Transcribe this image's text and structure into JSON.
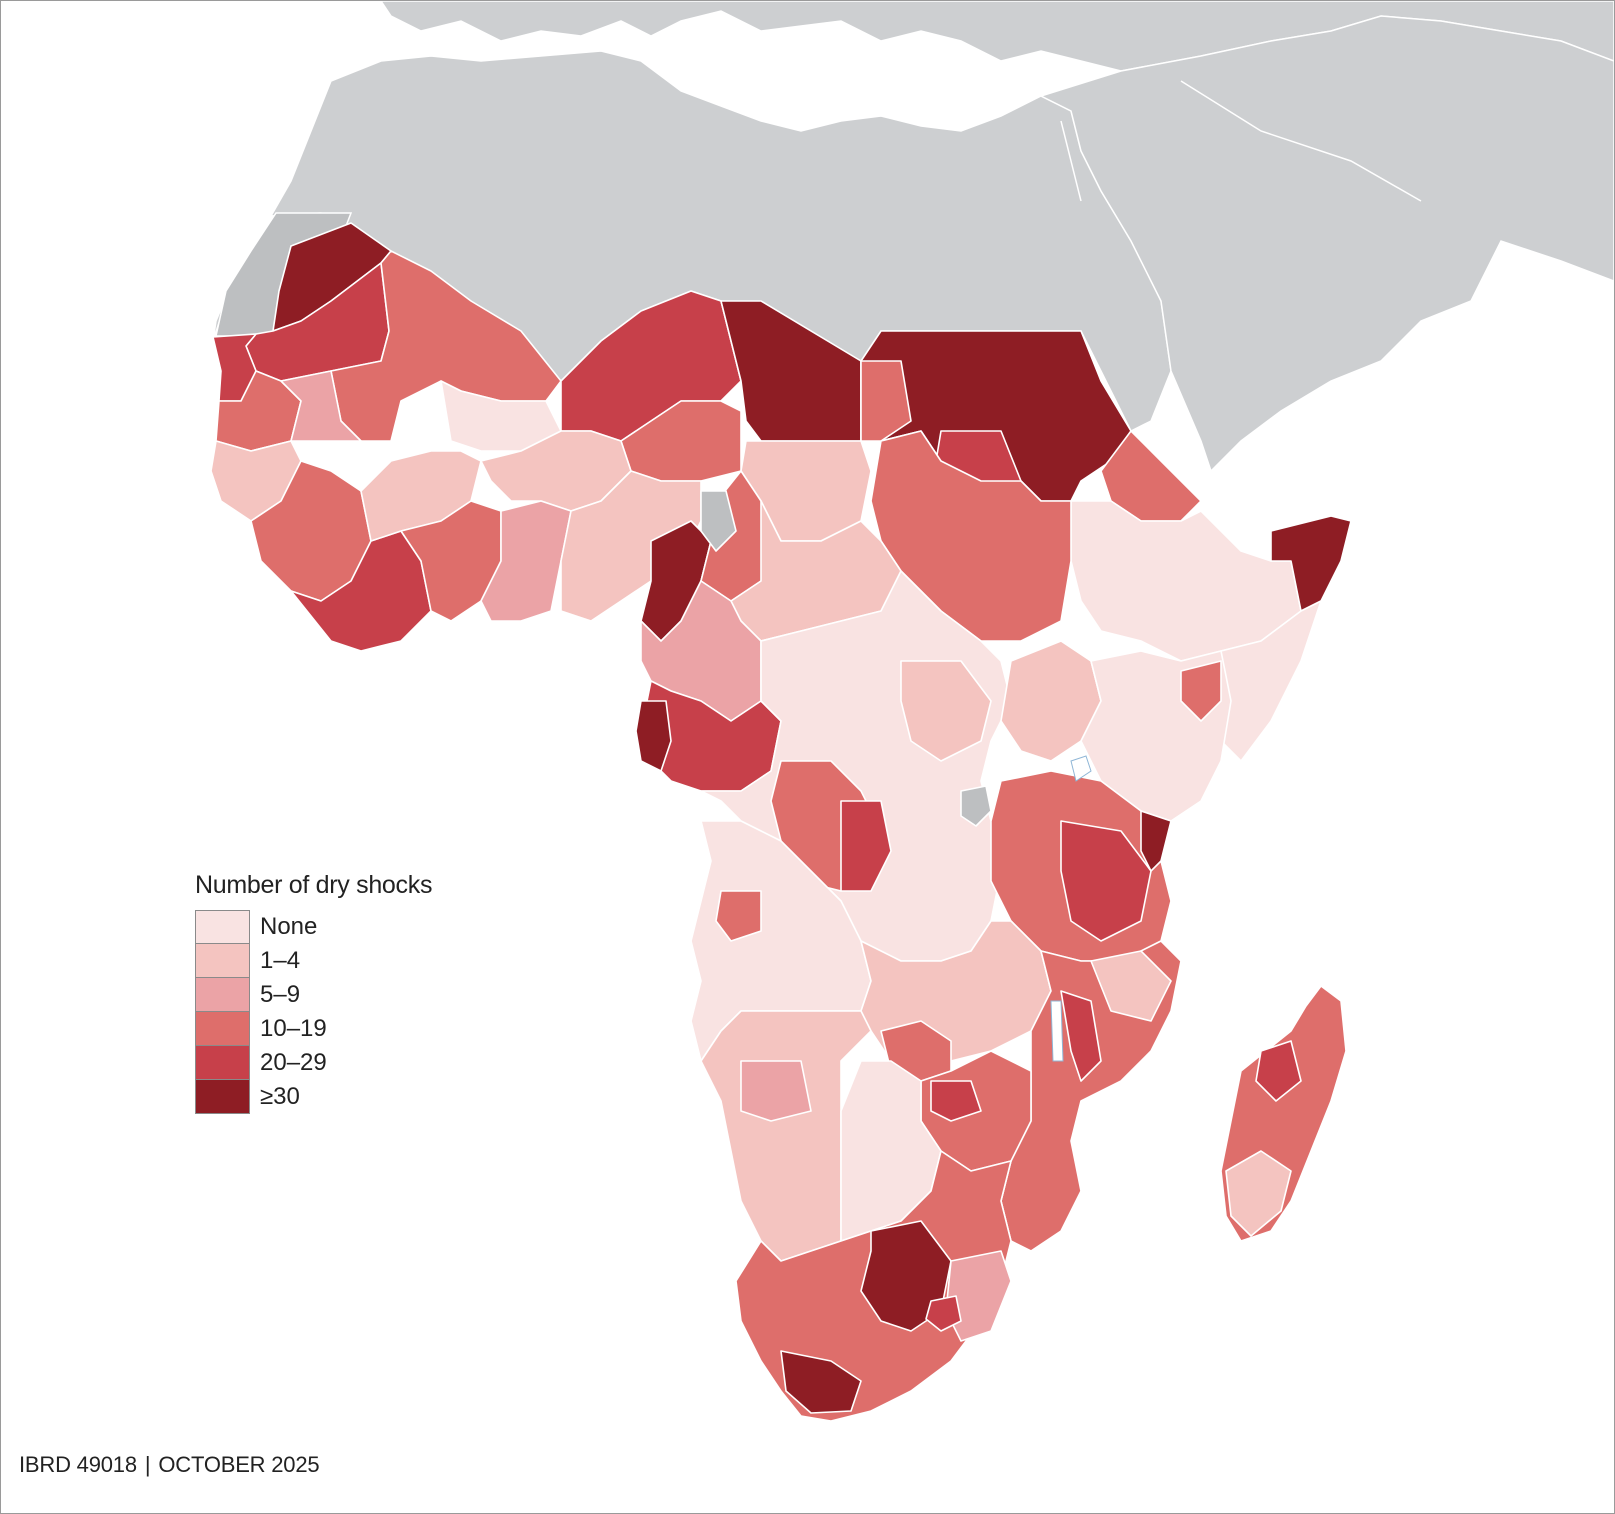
{
  "legend": {
    "title": "Number of dry shocks",
    "items": [
      {
        "label": "None",
        "color": "#f9e3e2"
      },
      {
        "label": "1–4",
        "color": "#f4c4c0"
      },
      {
        "label": "5–9",
        "color": "#eba3a6"
      },
      {
        "label": "10–19",
        "color": "#de6e6b"
      },
      {
        "label": "20–29",
        "color": "#c7404a"
      },
      {
        "label": "≥30",
        "color": "#8e1d24"
      }
    ]
  },
  "footer": {
    "map_id": "IBRD 49018",
    "date": "OCTOBER 2025"
  },
  "colors": {
    "land_outside": "#cdcfd1",
    "no_data": "#bdbfc1",
    "border": "#ffffff",
    "water": "#ffffff",
    "coast": "#8fb6d6"
  }
}
